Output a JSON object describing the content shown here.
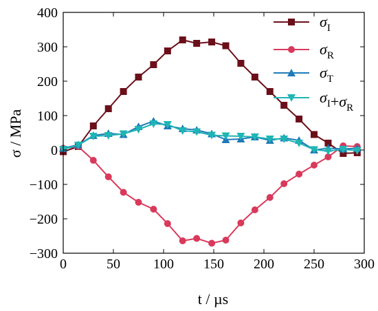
{
  "chart_data": {
    "type": "line",
    "xlabel": "t / µs",
    "ylabel": "σ / MPa",
    "xlim": [
      0,
      300
    ],
    "ylim": [
      -300,
      400
    ],
    "xticks": [
      "0",
      "50",
      "100",
      "150",
      "200",
      "250",
      "300"
    ],
    "yticks": [
      "400",
      "300",
      "200",
      "100",
      "0",
      "−100",
      "−200",
      "−300"
    ],
    "grid": false,
    "legend_position": "top-right",
    "series": [
      {
        "name": "σI",
        "color": "#6b0f1a",
        "marker": "square",
        "x": [
          0,
          15,
          30,
          45,
          60,
          75,
          90,
          104,
          119,
          133,
          148,
          162,
          177,
          191,
          206,
          220,
          235,
          250,
          264,
          279,
          293
        ],
        "y": [
          -5,
          10,
          70,
          120,
          170,
          212,
          248,
          288,
          320,
          310,
          314,
          303,
          252,
          212,
          170,
          130,
          90,
          45,
          20,
          -10,
          -8
        ]
      },
      {
        "name": "σR",
        "color": "#d9395b",
        "marker": "circle",
        "x": [
          0,
          15,
          30,
          45,
          60,
          75,
          90,
          104,
          119,
          133,
          148,
          162,
          177,
          191,
          206,
          220,
          235,
          250,
          264,
          279,
          293
        ],
        "y": [
          5,
          10,
          -30,
          -78,
          -123,
          -152,
          -172,
          -214,
          -264,
          -257,
          -271,
          -262,
          -212,
          -174,
          -138,
          -98,
          -70,
          -44,
          -20,
          12,
          10
        ]
      },
      {
        "name": "σT",
        "color": "#1f7ab8",
        "marker": "triangle-up",
        "x": [
          0,
          15,
          30,
          45,
          60,
          75,
          90,
          104,
          119,
          133,
          148,
          162,
          177,
          191,
          206,
          220,
          235,
          250,
          264,
          279,
          293
        ],
        "y": [
          5,
          15,
          42,
          48,
          45,
          68,
          84,
          70,
          62,
          58,
          47,
          30,
          32,
          38,
          28,
          35,
          28,
          0,
          5,
          3,
          5
        ]
      },
      {
        "name": "σI+σR",
        "color": "#1fb5b5",
        "marker": "triangle-down",
        "x": [
          0,
          15,
          30,
          45,
          60,
          75,
          90,
          104,
          119,
          133,
          148,
          162,
          177,
          191,
          206,
          220,
          235,
          250,
          264,
          279,
          293
        ],
        "y": [
          2,
          14,
          40,
          42,
          47,
          60,
          76,
          74,
          56,
          53,
          43,
          41,
          40,
          38,
          32,
          32,
          20,
          1,
          -3,
          2,
          -2
        ]
      }
    ]
  }
}
